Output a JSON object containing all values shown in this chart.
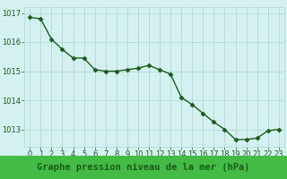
{
  "x": [
    0,
    1,
    2,
    3,
    4,
    5,
    6,
    7,
    8,
    9,
    10,
    11,
    12,
    13,
    14,
    15,
    16,
    17,
    18,
    19,
    20,
    21,
    22,
    23
  ],
  "y": [
    1016.85,
    1016.8,
    1016.1,
    1015.75,
    1015.45,
    1015.45,
    1015.05,
    1015.0,
    1015.0,
    1015.05,
    1015.1,
    1015.2,
    1015.05,
    1014.9,
    1014.1,
    1013.85,
    1013.55,
    1013.25,
    1013.0,
    1012.65,
    1012.65,
    1012.7,
    1012.95,
    1013.0
  ],
  "line_color": "#1a5c1a",
  "marker": "D",
  "marker_size": 2.5,
  "line_width": 1.0,
  "bg_color": "#d4f0f0",
  "grid_color": "#b0d8d8",
  "xlabel": "Graphe pression niveau de la mer (hPa)",
  "xlabel_fontsize": 7.5,
  "xlabel_color": "#1a5c1a",
  "xlabel_bg": "#44bb44",
  "tick_color": "#1a5c1a",
  "tick_fontsize": 6,
  "ylim": [
    1012.4,
    1017.2
  ],
  "yticks": [
    1013,
    1014,
    1015,
    1016,
    1017
  ],
  "xlim": [
    -0.5,
    23.5
  ]
}
